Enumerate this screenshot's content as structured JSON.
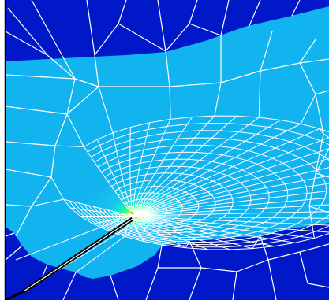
{
  "figure": {
    "kind": "finite element mesh contour plot",
    "colors": {
      "background": "#ffffff",
      "frame": "#000000",
      "outer_region": "#0018c8",
      "mid_region": "#12b4f0",
      "mesh_lines": "#ffffff",
      "crack": "#000000",
      "hot_low": "#14e6d2",
      "hot_mid": "#2cff6e",
      "hot_high": "#e8ff1e",
      "hot_peak": "#ff5a14"
    }
  }
}
